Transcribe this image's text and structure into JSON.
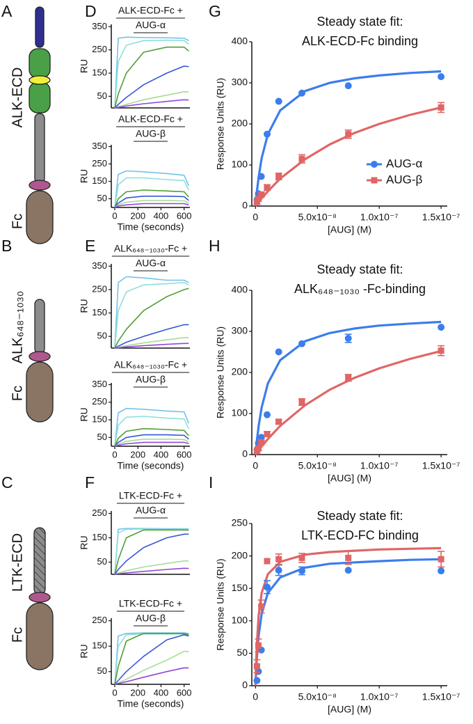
{
  "panel_labels": [
    "A",
    "B",
    "C",
    "D",
    "E",
    "F",
    "G",
    "H",
    "I"
  ],
  "diagrams": [
    {
      "labels": [
        "ALK-ECD",
        "Fc"
      ]
    },
    {
      "labels": [
        "ALK₆₄₈₋₁₀₃₀",
        "Fc"
      ]
    },
    {
      "labels": [
        "LTK-ECD",
        "Fc"
      ]
    }
  ],
  "chart_data": [
    {
      "type": "line",
      "title": [
        "ALK-ECD-Fc +",
        "AUG-α"
      ],
      "y_label": "RU",
      "x": [
        0,
        30,
        100,
        250,
        450,
        600,
        640
      ],
      "xlim": [
        -30,
        650
      ],
      "ylim": [
        0,
        360
      ],
      "yticks": [
        50,
        150,
        250,
        350
      ],
      "series": [
        {
          "color": "#72c2ea",
          "values": [
            0,
            300,
            305,
            303,
            302,
            300,
            290
          ]
        },
        {
          "color": "#8de0d9",
          "values": [
            0,
            200,
            270,
            290,
            292,
            290,
            275
          ]
        },
        {
          "color": "#4f9e34",
          "values": [
            0,
            60,
            150,
            240,
            262,
            262,
            245
          ]
        },
        {
          "color": "#3557d6",
          "values": [
            0,
            15,
            45,
            100,
            150,
            180,
            178
          ]
        },
        {
          "color": "#a6dc94",
          "values": [
            0,
            5,
            15,
            35,
            55,
            70,
            68
          ]
        },
        {
          "color": "#9346d8",
          "values": [
            0,
            2,
            8,
            18,
            28,
            35,
            34
          ]
        }
      ]
    },
    {
      "type": "line",
      "title": [
        "ALK-ECD-Fc +",
        "AUG-β"
      ],
      "y_label": "RU",
      "x_label": "Time (seconds)",
      "x": [
        0,
        30,
        100,
        250,
        450,
        600,
        640
      ],
      "xlim": [
        -30,
        650
      ],
      "xticks": [
        0,
        200,
        400,
        600
      ],
      "ylim": [
        0,
        360
      ],
      "yticks": [
        50,
        150,
        250,
        350
      ],
      "series": [
        {
          "color": "#72c2ea",
          "values": [
            0,
            190,
            210,
            205,
            195,
            185,
            125
          ]
        },
        {
          "color": "#8de0d9",
          "values": [
            0,
            130,
            170,
            170,
            160,
            155,
            100
          ]
        },
        {
          "color": "#4f9e34",
          "values": [
            0,
            50,
            90,
            100,
            95,
            90,
            60
          ]
        },
        {
          "color": "#3557d6",
          "values": [
            0,
            25,
            55,
            65,
            65,
            62,
            40
          ]
        },
        {
          "color": "#a6dc94",
          "values": [
            0,
            15,
            30,
            40,
            40,
            38,
            25
          ]
        },
        {
          "color": "#9346d8",
          "values": [
            0,
            8,
            15,
            22,
            22,
            22,
            15
          ]
        }
      ]
    },
    {
      "type": "line",
      "title": [
        "ALK₆₄₈₋₁₀₃₀-Fc +",
        "AUG-α"
      ],
      "y_label": "RU",
      "x": [
        0,
        30,
        100,
        250,
        450,
        600,
        640
      ],
      "xlim": [
        -30,
        650
      ],
      "ylim": [
        0,
        360
      ],
      "yticks": [
        50,
        150,
        250,
        350
      ],
      "series": [
        {
          "color": "#72c2ea",
          "values": [
            0,
            280,
            305,
            300,
            290,
            290,
            280
          ]
        },
        {
          "color": "#8de0d9",
          "values": [
            0,
            160,
            240,
            270,
            275,
            280,
            270
          ]
        },
        {
          "color": "#4f9e34",
          "values": [
            0,
            30,
            80,
            160,
            220,
            250,
            255
          ]
        },
        {
          "color": "#3557d6",
          "values": [
            0,
            8,
            25,
            50,
            80,
            100,
            100
          ]
        },
        {
          "color": "#a6dc94",
          "values": [
            0,
            3,
            10,
            22,
            35,
            45,
            45
          ]
        },
        {
          "color": "#9346d8",
          "values": [
            0,
            1,
            5,
            10,
            16,
            20,
            20
          ]
        }
      ]
    },
    {
      "type": "line",
      "title": [
        "ALK₆₄₈₋₁₀₃₀-Fc +",
        "AUG-β"
      ],
      "y_label": "RU",
      "x_label": "Time (seconds)",
      "x": [
        0,
        30,
        100,
        250,
        450,
        600,
        640
      ],
      "xlim": [
        -30,
        650
      ],
      "xticks": [
        0,
        200,
        400,
        600
      ],
      "ylim": [
        0,
        360
      ],
      "yticks": [
        50,
        150,
        250,
        350
      ],
      "series": [
        {
          "color": "#72c2ea",
          "values": [
            0,
            190,
            215,
            210,
            200,
            195,
            130
          ]
        },
        {
          "color": "#8de0d9",
          "values": [
            0,
            120,
            165,
            170,
            160,
            155,
            100
          ]
        },
        {
          "color": "#4f9e34",
          "values": [
            0,
            45,
            85,
            100,
            95,
            90,
            60
          ]
        },
        {
          "color": "#3557d6",
          "values": [
            0,
            22,
            50,
            65,
            65,
            62,
            40
          ]
        },
        {
          "color": "#a6dc94",
          "values": [
            0,
            12,
            28,
            40,
            40,
            38,
            25
          ]
        },
        {
          "color": "#9346d8",
          "values": [
            0,
            6,
            14,
            22,
            22,
            22,
            15
          ]
        }
      ]
    },
    {
      "type": "line",
      "title": [
        "LTK-ECD-Fc +",
        "AUG-α"
      ],
      "y_label": "RU",
      "x": [
        0,
        30,
        100,
        250,
        450,
        600,
        640
      ],
      "xlim": [
        -30,
        650
      ],
      "ylim": [
        0,
        260
      ],
      "yticks": [
        50,
        150,
        250
      ],
      "series": [
        {
          "color": "#72c2ea",
          "values": [
            0,
            185,
            188,
            188,
            187,
            187,
            187
          ]
        },
        {
          "color": "#8de0d9",
          "values": [
            0,
            170,
            185,
            186,
            185,
            185,
            184
          ]
        },
        {
          "color": "#4f9e34",
          "values": [
            0,
            60,
            150,
            182,
            182,
            182,
            181
          ]
        },
        {
          "color": "#3557d6",
          "values": [
            0,
            20,
            55,
            110,
            150,
            165,
            165
          ]
        },
        {
          "color": "#a6dc94",
          "values": [
            0,
            5,
            15,
            30,
            45,
            55,
            55
          ]
        },
        {
          "color": "#9346d8",
          "values": [
            0,
            2,
            6,
            12,
            20,
            25,
            24
          ]
        }
      ]
    },
    {
      "type": "line",
      "title": [
        "LTK-ECD-Fc +",
        "AUG-β"
      ],
      "y_label": "RU",
      "x_label": "Time (seconds)",
      "x": [
        0,
        30,
        100,
        250,
        450,
        600,
        640
      ],
      "xlim": [
        -30,
        650
      ],
      "xticks": [
        0,
        200,
        400,
        600
      ],
      "ylim": [
        0,
        260
      ],
      "yticks": [
        50,
        150,
        250
      ],
      "series": [
        {
          "color": "#72c2ea",
          "values": [
            0,
            190,
            200,
            202,
            202,
            202,
            200
          ]
        },
        {
          "color": "#8de0d9",
          "values": [
            0,
            150,
            195,
            198,
            198,
            198,
            195
          ]
        },
        {
          "color": "#4f9e34",
          "values": [
            0,
            70,
            170,
            200,
            200,
            200,
            195
          ]
        },
        {
          "color": "#3557d6",
          "values": [
            0,
            15,
            50,
            110,
            175,
            195,
            190
          ]
        },
        {
          "color": "#a6dc94",
          "values": [
            0,
            5,
            20,
            55,
            95,
            130,
            128
          ]
        },
        {
          "color": "#9346d8",
          "values": [
            0,
            3,
            10,
            28,
            50,
            65,
            64
          ]
        }
      ]
    },
    {
      "type": "scatter",
      "title": [
        "Steady state fit:",
        "ALK-ECD-Fc binding"
      ],
      "y_label": "Response Units (RU)",
      "x_label": "[AUG] (M)",
      "x": [
        1.17e-09,
        2.34e-09,
        4.69e-09,
        9.38e-09,
        1.875e-08,
        3.75e-08,
        7.5e-08,
        1.5e-07
      ],
      "xlim": [
        -3e-09,
        1.55e-07
      ],
      "xticks": [
        0,
        {
          "value": 5e-08,
          "label": "5.0x10⁻⁸"
        },
        {
          "value": 1e-07,
          "label": "1.0x10⁻⁷"
        },
        {
          "value": 1.5e-07,
          "label": "1.5x10⁻⁷"
        }
      ],
      "ylim": [
        0,
        400
      ],
      "yticks": [
        0,
        100,
        200,
        300,
        400
      ],
      "legend": "lower-right",
      "fit_x": [
        0,
        1e-09,
        2.5e-09,
        5e-09,
        1e-08,
        2e-08,
        4e-08,
        6e-08,
        8e-08,
        1e-07,
        1.25e-07,
        1.5e-07
      ],
      "series": [
        {
          "name": "AUG-α",
          "color": "#3b7ded",
          "marker": "circle",
          "values": [
            15,
            30,
            72,
            175,
            255,
            275,
            293,
            315
          ],
          "errors": [
            null,
            null,
            null,
            null,
            null,
            null,
            null,
            null
          ],
          "fit": [
            0,
            32,
            70,
            117,
            175,
            233,
            280,
            300,
            311,
            318,
            324,
            328
          ]
        },
        {
          "name": "AUG-β",
          "color": "#e06566",
          "marker": "square",
          "values": [
            10,
            18,
            28,
            45,
            72,
            115,
            175,
            240
          ],
          "errors": [
            5,
            6,
            6,
            7,
            8,
            10,
            10,
            12
          ],
          "fit": [
            0,
            4,
            10,
            19,
            36,
            67,
            114,
            150,
            178,
            200,
            222,
            240
          ]
        }
      ]
    },
    {
      "type": "scatter",
      "title": [
        "Steady state fit:",
        "ALK₆₄₈₋₁₀₃₀ -Fc-binding"
      ],
      "y_label": "Response Units (RU)",
      "x_label": "[AUG] (M)",
      "x": [
        1.17e-09,
        2.34e-09,
        4.69e-09,
        9.38e-09,
        1.875e-08,
        3.75e-08,
        7.5e-08,
        1.5e-07
      ],
      "xlim": [
        -3e-09,
        1.55e-07
      ],
      "xticks": [
        0,
        {
          "value": 5e-08,
          "label": "5.0x10⁻⁸"
        },
        {
          "value": 1e-07,
          "label": "1.0x10⁻⁷"
        },
        {
          "value": 1.5e-07,
          "label": "1.5x10⁻⁷"
        }
      ],
      "ylim": [
        0,
        400
      ],
      "yticks": [
        0,
        100,
        200,
        300,
        400
      ],
      "fit_x": [
        0,
        1e-09,
        2.5e-09,
        5e-09,
        1e-08,
        2e-08,
        4e-08,
        6e-08,
        8e-08,
        1e-07,
        1.25e-07,
        1.5e-07
      ],
      "series": [
        {
          "name": "AUG-α",
          "color": "#3b7ded",
          "marker": "circle",
          "values": [
            12,
            28,
            42,
            97,
            250,
            270,
            283,
            310
          ],
          "errors": [
            null,
            null,
            null,
            null,
            null,
            null,
            10,
            null
          ],
          "fit": [
            0,
            31,
            69,
            115,
            173,
            230,
            276,
            296,
            307,
            314,
            319,
            323
          ]
        },
        {
          "name": "AUG-β",
          "color": "#e06566",
          "marker": "square",
          "values": [
            8,
            15,
            30,
            50,
            80,
            128,
            187,
            253
          ],
          "errors": [
            4,
            5,
            5,
            6,
            5,
            8,
            8,
            12
          ],
          "fit": [
            0,
            4,
            10,
            20,
            38,
            70,
            120,
            158,
            187,
            210,
            233,
            252
          ]
        }
      ]
    },
    {
      "type": "scatter",
      "title": [
        "Steady state fit:",
        "LTK-ECD-FC binding"
      ],
      "y_label": "Response Units (RU)",
      "x_label": "[AUG] (M)",
      "x": [
        1.17e-09,
        2.34e-09,
        4.69e-09,
        9.38e-09,
        1.875e-08,
        3.75e-08,
        7.5e-08,
        1.5e-07
      ],
      "xlim": [
        -3e-09,
        1.55e-07
      ],
      "xticks": [
        0,
        {
          "value": 5e-08,
          "label": "5.0x10⁻⁸"
        },
        {
          "value": 1e-07,
          "label": "1.0x10⁻⁷"
        },
        {
          "value": 1.5e-07,
          "label": "1.5x10⁻⁷"
        }
      ],
      "ylim": [
        0,
        250
      ],
      "yticks": [
        0,
        50,
        100,
        150,
        200,
        250
      ],
      "fit_x": [
        0,
        1e-09,
        2.5e-09,
        5e-09,
        1e-08,
        2e-08,
        4e-08,
        6e-08,
        8e-08,
        1e-07,
        1.25e-07,
        1.5e-07
      ],
      "series": [
        {
          "name": "AUG-α",
          "color": "#3b7ded",
          "marker": "circle",
          "values": [
            8,
            22,
            55,
            152,
            178,
            177,
            178,
            177
          ],
          "errors": [
            null,
            null,
            null,
            10,
            8,
            6,
            null,
            null
          ],
          "fit": [
            0,
            40,
            77,
            111,
            143,
            167,
            182,
            188,
            190,
            192,
            194,
            195
          ]
        },
        {
          "name": "AUG-β",
          "color": "#e06566",
          "marker": "square",
          "values": [
            30,
            62,
            122,
            192,
            195,
            197,
            197,
            195
          ],
          "errors": [
            10,
            10,
            10,
            null,
            8,
            7,
            10,
            12
          ],
          "fit": [
            0,
            61,
            108,
            143,
            172,
            191,
            202,
            206,
            208,
            210,
            211,
            212
          ]
        }
      ]
    }
  ]
}
